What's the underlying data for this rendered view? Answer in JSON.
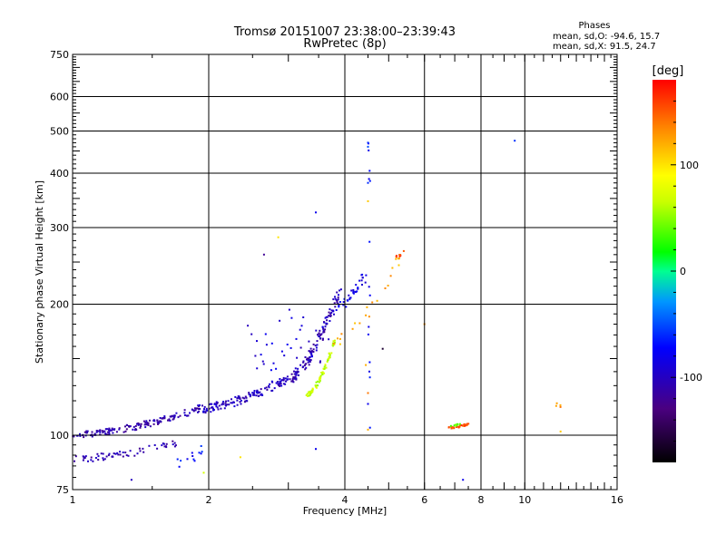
{
  "chart_data": {
    "type": "scatter",
    "title": "Tromsø 20151007 23:38:00–23:39:43",
    "subtitle": "RwPretec (8p)",
    "xlabel": "Frequency [MHz]",
    "ylabel": "Stationary phase Virtual Height [km]",
    "x_scale": "log",
    "y_scale": "log",
    "xlim": [
      1,
      16
    ],
    "ylim": [
      75,
      750
    ],
    "x_ticks": [
      {
        "value": 1,
        "label": "1"
      },
      {
        "value": 2,
        "label": "2"
      },
      {
        "value": 4,
        "label": "4"
      },
      {
        "value": 6,
        "label": "6"
      },
      {
        "value": 8,
        "label": "8"
      },
      {
        "value": 10,
        "label": "10"
      },
      {
        "value": 16,
        "label": "16"
      }
    ],
    "x_grid": [
      2,
      4,
      6,
      8,
      10
    ],
    "y_ticks": [
      {
        "value": 75,
        "label": "75"
      },
      {
        "value": 100,
        "label": "100"
      },
      {
        "value": 200,
        "label": "200"
      },
      {
        "value": 300,
        "label": "300"
      },
      {
        "value": 400,
        "label": "400"
      },
      {
        "value": 500,
        "label": "500"
      },
      {
        "value": 600,
        "label": "600"
      },
      {
        "value": 750,
        "label": "750"
      }
    ],
    "y_grid": [
      100,
      200,
      300,
      400,
      500,
      600
    ],
    "stats": {
      "heading": "Phases",
      "o_line": "mean, sd,O: -94.6, 15.7",
      "x_line": "mean, sd,X:  91.5, 24.7"
    },
    "colorbar": {
      "label": "[deg]",
      "range": [
        -180,
        180
      ],
      "ticks": [
        {
          "value": 100,
          "label": "100"
        },
        {
          "value": 0,
          "label": "0"
        },
        {
          "value": -100,
          "label": "-100"
        }
      ]
    },
    "clusters": [
      {
        "name": "low-O-trace",
        "x": [
          1.0,
          1.9
        ],
        "y": [
          100,
          115
        ],
        "phase": -110,
        "count": 150,
        "spread": 0.035
      },
      {
        "name": "rising-O-trace",
        "x": [
          1.9,
          3.0
        ],
        "y": [
          115,
          135
        ],
        "phase": -100,
        "count": 140,
        "spread": 0.045
      },
      {
        "name": "cusp-O-trace",
        "x": [
          3.0,
          3.9
        ],
        "y": [
          135,
          215
        ],
        "phase": -105,
        "count": 130,
        "spread": 0.05
      },
      {
        "name": "blue-scatter",
        "x": [
          2.4,
          3.6
        ],
        "y": [
          140,
          185
        ],
        "phase": -90,
        "count": 35,
        "spread": 0.15
      },
      {
        "name": "top-O-points",
        "x": [
          3.8,
          4.5
        ],
        "y": [
          195,
          240
        ],
        "phase": -80,
        "count": 35,
        "spread": 0.05
      },
      {
        "name": "X-trace-yellow",
        "x": [
          3.3,
          3.8
        ],
        "y": [
          124,
          165
        ],
        "phase": 65,
        "count": 75,
        "spread": 0.02
      },
      {
        "name": "X-orange-upper",
        "x": [
          3.8,
          5.3
        ],
        "y": [
          165,
          255
        ],
        "phase": 120,
        "count": 22,
        "spread": 0.06
      },
      {
        "name": "E-echoes",
        "x": [
          1.0,
          1.7
        ],
        "y": [
          88,
          96
        ],
        "phase": -110,
        "count": 60,
        "spread": 0.04
      },
      {
        "name": "E-echoes-2",
        "x": [
          1.7,
          2.0
        ],
        "y": [
          86,
          96
        ],
        "phase": -70,
        "count": 12,
        "spread": 0.05
      },
      {
        "name": "red-cluster-6.8",
        "x": [
          6.8,
          7.5
        ],
        "y": [
          104,
          106
        ],
        "phase": 150,
        "count": 30,
        "spread": 0.01
      },
      {
        "name": "green-cluster-6.8",
        "x": [
          6.8,
          7.2
        ],
        "y": [
          105,
          106
        ],
        "phase": 40,
        "count": 10,
        "spread": 0.01
      },
      {
        "name": "red-5.2",
        "x": [
          5.2,
          5.4
        ],
        "y": [
          258,
          262
        ],
        "phase": 160,
        "count": 8,
        "spread": 0.01
      },
      {
        "name": "scatter-4.5",
        "x": [
          4.5,
          4.55
        ],
        "y": [
          90,
          470
        ],
        "phase": -70,
        "count": 14,
        "spread": 0.02
      },
      {
        "name": "scatter-11",
        "x": [
          11.5,
          12.2
        ],
        "y": [
          116,
          119
        ],
        "phase": 130,
        "count": 4,
        "spread": 0.01
      }
    ],
    "points": [
      {
        "x": 3.45,
        "y": 325,
        "phase": -80
      },
      {
        "x": 2.65,
        "y": 260,
        "phase": -120
      },
      {
        "x": 2.85,
        "y": 285,
        "phase": 100
      },
      {
        "x": 9.5,
        "y": 475,
        "phase": -60
      },
      {
        "x": 7.3,
        "y": 79,
        "phase": -80
      },
      {
        "x": 1.35,
        "y": 79,
        "phase": -100
      },
      {
        "x": 1.95,
        "y": 82,
        "phase": 70
      },
      {
        "x": 2.35,
        "y": 89,
        "phase": 100
      },
      {
        "x": 3.45,
        "y": 93,
        "phase": -80
      },
      {
        "x": 4.5,
        "y": 103,
        "phase": 120
      },
      {
        "x": 12.0,
        "y": 102,
        "phase": 110
      },
      {
        "x": 4.85,
        "y": 158,
        "phase": -160
      },
      {
        "x": 4.45,
        "y": 145,
        "phase": 120
      },
      {
        "x": 6.0,
        "y": 180,
        "phase": 130
      },
      {
        "x": 4.5,
        "y": 470,
        "phase": -60
      },
      {
        "x": 4.5,
        "y": 460,
        "phase": -50
      },
      {
        "x": 4.5,
        "y": 380,
        "phase": -60
      },
      {
        "x": 4.5,
        "y": 345,
        "phase": 110
      },
      {
        "x": 4.5,
        "y": 125,
        "phase": 140
      },
      {
        "x": 4.5,
        "y": 118,
        "phase": -80
      },
      {
        "x": 5.4,
        "y": 265,
        "phase": 150
      }
    ]
  }
}
